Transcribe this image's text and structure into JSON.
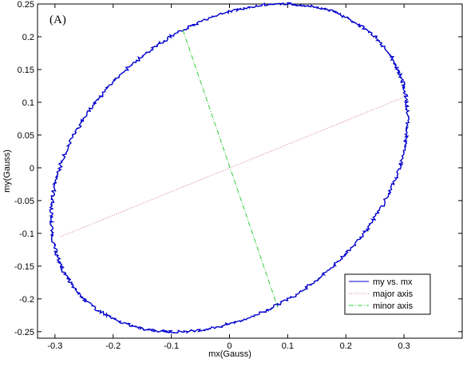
{
  "chart_data": {
    "type": "line",
    "panel_label": "(A)",
    "xlabel": "mx(Gauss)",
    "ylabel": "my(Gauss)",
    "xlim": [
      -0.33,
      0.4
    ],
    "ylim": [
      -0.26,
      0.25
    ],
    "xticks": [
      -0.3,
      -0.2,
      -0.1,
      0,
      0.1,
      0.2,
      0.3
    ],
    "xtick_labels": [
      "-0.3",
      "-0.2",
      "-0.1",
      "0",
      "0.1",
      "0.2",
      "0.3"
    ],
    "yticks": [
      0.25,
      0.2,
      0.15,
      0.1,
      0.05,
      0,
      -0.05,
      -0.1,
      -0.15,
      -0.2,
      -0.25
    ],
    "ytick_labels": [
      "0.25",
      "0.2",
      "0.15",
      "0.1",
      "0.05",
      "0",
      "-0.05",
      "-0.1",
      "-0.15",
      "-0.2",
      "-0.25"
    ],
    "grid": false,
    "legend_position": "bottom-right",
    "series": [
      {
        "name": "my vs. mx",
        "color": "#0000cc",
        "style": "solid",
        "ellipse": {
          "center": [
            0.0,
            0.0
          ],
          "semi_major": 0.326,
          "semi_minor": 0.224,
          "angle_deg": 28
        }
      },
      {
        "name": "major axis",
        "color": "#d07070",
        "style": "dotted",
        "x": [
          -0.29,
          0.3
        ],
        "y": [
          -0.105,
          0.108
        ]
      },
      {
        "name": "minor axis",
        "color": "#33cc33",
        "style": "dashdot",
        "x": [
          -0.08,
          0.083
        ],
        "y": [
          0.21,
          -0.213
        ]
      }
    ]
  }
}
